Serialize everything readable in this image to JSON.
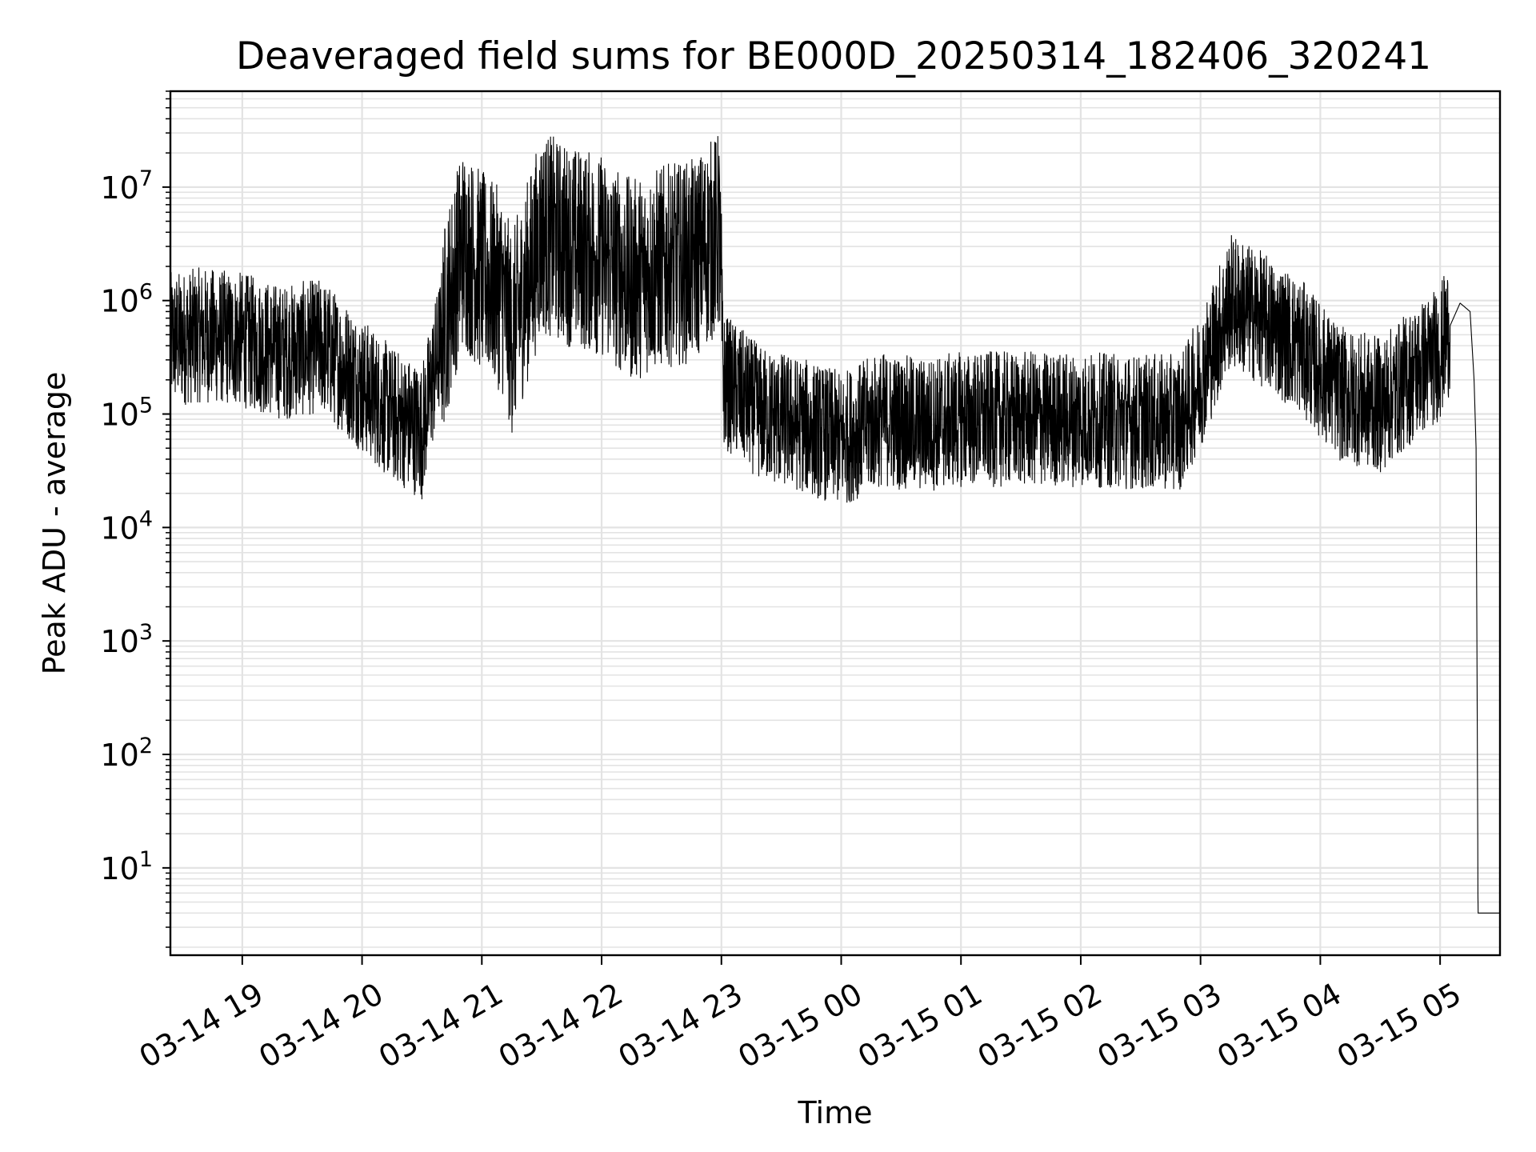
{
  "chart_data": {
    "type": "line",
    "title": "Deaveraged field sums for BE000D_20250314_182406_320241",
    "xlabel": "Time",
    "ylabel": "Peak ADU - average",
    "yscale": "log",
    "ylim": [
      1.7,
      70000000
    ],
    "xlim": [
      "03-14 18:24",
      "03-15 05:30"
    ],
    "grid": true,
    "line_color": "#000000",
    "x_ticks": [
      "03-14 19",
      "03-14 20",
      "03-14 21",
      "03-14 22",
      "03-14 23",
      "03-15 00",
      "03-15 01",
      "03-15 02",
      "03-15 03",
      "03-15 04",
      "03-15 05"
    ],
    "y_ticks": [
      {
        "value": 10,
        "base": "10",
        "exp": "1"
      },
      {
        "value": 100,
        "base": "10",
        "exp": "2"
      },
      {
        "value": 1000,
        "base": "10",
        "exp": "3"
      },
      {
        "value": 10000,
        "base": "10",
        "exp": "4"
      },
      {
        "value": 100000,
        "base": "10",
        "exp": "5"
      },
      {
        "value": 1000000,
        "base": "10",
        "exp": "6"
      },
      {
        "value": 10000000,
        "base": "10",
        "exp": "7"
      }
    ],
    "series": [
      {
        "x": [
          "03-14 18:24",
          "03-14 18:40",
          "03-14 19:00",
          "03-14 19:20",
          "03-14 19:40",
          "03-14 20:00",
          "03-14 20:15",
          "03-14 20:30",
          "03-14 20:40",
          "03-14 20:50",
          "03-14 21:00",
          "03-14 21:10",
          "03-14 21:15",
          "03-14 21:30",
          "03-14 21:45",
          "03-14 22:00",
          "03-14 22:15",
          "03-14 22:30",
          "03-14 22:45",
          "03-14 22:59",
          "03-14 23:01",
          "03-14 23:20",
          "03-14 23:40",
          "03-15 00:00",
          "03-15 00:20",
          "03-15 00:40",
          "03-15 01:00",
          "03-15 01:30",
          "03-15 02:00",
          "03-15 02:30",
          "03-15 02:50",
          "03-15 03:00",
          "03-15 03:15",
          "03-15 03:30",
          "03-15 03:50",
          "03-15 04:10",
          "03-15 04:30",
          "03-15 04:50",
          "03-15 05:00",
          "03-15 05:05",
          "03-15 05:10",
          "03-15 05:15",
          "03-15 05:17",
          "03-15 05:18",
          "03-15 05:19",
          "03-15 05:30"
        ],
        "y": [
          450000,
          500000,
          450000,
          350000,
          400000,
          180000,
          100000,
          70000,
          500000,
          3000000,
          1800000,
          1200000,
          500000,
          4000000,
          3000000,
          2500000,
          1500000,
          2000000,
          2200000,
          4000000,
          200000,
          100000,
          80000,
          60000,
          90000,
          80000,
          90000,
          90000,
          90000,
          85000,
          85000,
          200000,
          1000000,
          700000,
          400000,
          150000,
          120000,
          250000,
          350000,
          600000,
          950000,
          800000,
          200000,
          50000,
          4,
          4
        ]
      }
    ]
  }
}
